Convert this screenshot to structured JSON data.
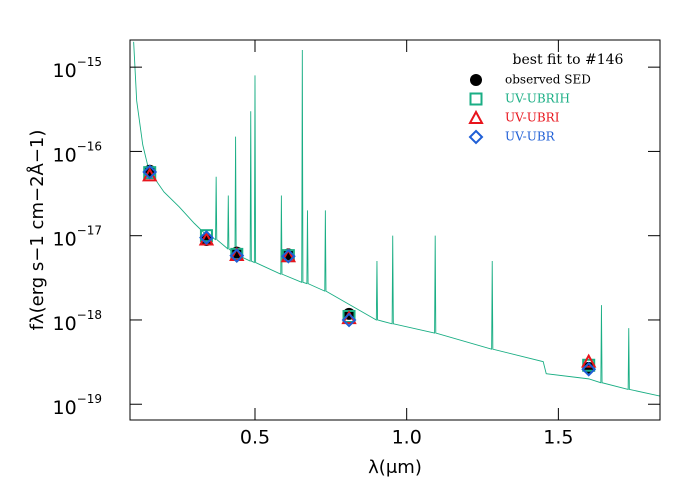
{
  "chart_data": {
    "type": "scatter",
    "yscale": "log",
    "xlabel": "λ(μm)",
    "ylabel": "fλ(erg s−1 cm−2Å−1)",
    "legend_title": "best fit to #146",
    "legend": "upper right",
    "xlim": [
      0.088,
      1.835
    ],
    "ylim": [
      6.5e-20,
      2.1e-15
    ],
    "xticks": [
      0.5,
      {
        "value": 1,
        "label": "1.0"
      },
      1.5
    ],
    "yticks": [
      {
        "value": 1e-19,
        "label": "10−19"
      },
      {
        "value": 1e-18,
        "label": "10−18"
      },
      {
        "value": 1e-17,
        "label": "10−17"
      },
      {
        "value": 1e-16,
        "label": "10−16"
      },
      {
        "value": 1e-15,
        "label": "10−15"
      }
    ],
    "x": [
      0.153,
      0.34,
      0.44,
      0.61,
      0.81,
      1.6
    ],
    "series": [
      {
        "name": "observed SED",
        "color": "#000000",
        "marker": "circle",
        "values": [
          5.9e-17,
          8.9e-18,
          6.3e-18,
          6e-18,
          1.18e-18,
          2.7e-19
        ]
      },
      {
        "name": "UV-UBRIH",
        "color": "#1aae84",
        "marker": "square",
        "values": [
          5.6e-17,
          1e-17,
          6e-18,
          5.8e-18,
          1.1e-18,
          2.9e-19
        ]
      },
      {
        "name": "UV-UBRI",
        "color": "#e8141c",
        "marker": "triangle",
        "values": [
          5.2e-17,
          9e-18,
          5.9e-18,
          5.7e-18,
          1.05e-18,
          3.2e-19
        ]
      },
      {
        "name": "UV-UBR",
        "color": "#1f5fd6",
        "marker": "diamond",
        "values": [
          5.7e-17,
          9.5e-18,
          5.8e-18,
          5.7e-18,
          1e-18,
          2.6e-19
        ]
      }
    ],
    "model": {
      "color": "#1aae84",
      "x": [
        0.1,
        0.11,
        0.13,
        0.15,
        0.2,
        0.25,
        0.3,
        0.33,
        0.37,
        0.372,
        0.374,
        0.41,
        0.412,
        0.414,
        0.434,
        0.436,
        0.438,
        0.484,
        0.486,
        0.488,
        0.498,
        0.5,
        0.502,
        0.585,
        0.587,
        0.589,
        0.654,
        0.656,
        0.658,
        0.671,
        0.673,
        0.675,
        0.73,
        0.732,
        0.734,
        0.9,
        0.902,
        0.904,
        0.952,
        0.954,
        0.956,
        1.092,
        1.094,
        1.096,
        1.28,
        1.282,
        1.284,
        1.45,
        1.46,
        1.6,
        1.64,
        1.642,
        1.644,
        1.73,
        1.732,
        1.734,
        1.835
      ],
      "values": [
        2e-15,
        4e-16,
        1.2e-16,
        6e-17,
        3.3e-17,
        2.2e-17,
        1.4e-17,
        1.1e-17,
        9e-18,
        5e-17,
        9e-18,
        7e-18,
        3e-17,
        7e-18,
        6e-18,
        1.5e-16,
        6e-18,
        5e-18,
        3e-16,
        5e-18,
        4.8e-18,
        8e-16,
        4.8e-18,
        3.5e-18,
        3e-17,
        3.5e-18,
        2.8e-18,
        1.6e-15,
        2.8e-18,
        2.7e-18,
        2e-17,
        2.7e-18,
        2.2e-18,
        2e-17,
        2.2e-18,
        1e-18,
        5e-18,
        1e-18,
        9e-19,
        1e-17,
        9e-19,
        7e-19,
        1e-17,
        7e-19,
        4.5e-19,
        5e-18,
        4.5e-19,
        3.2e-19,
        2.3e-19,
        2e-19,
        1.8e-19,
        1.5e-18,
        1.8e-19,
        1.5e-19,
        8e-19,
        1.5e-19,
        1.25e-19
      ]
    }
  }
}
